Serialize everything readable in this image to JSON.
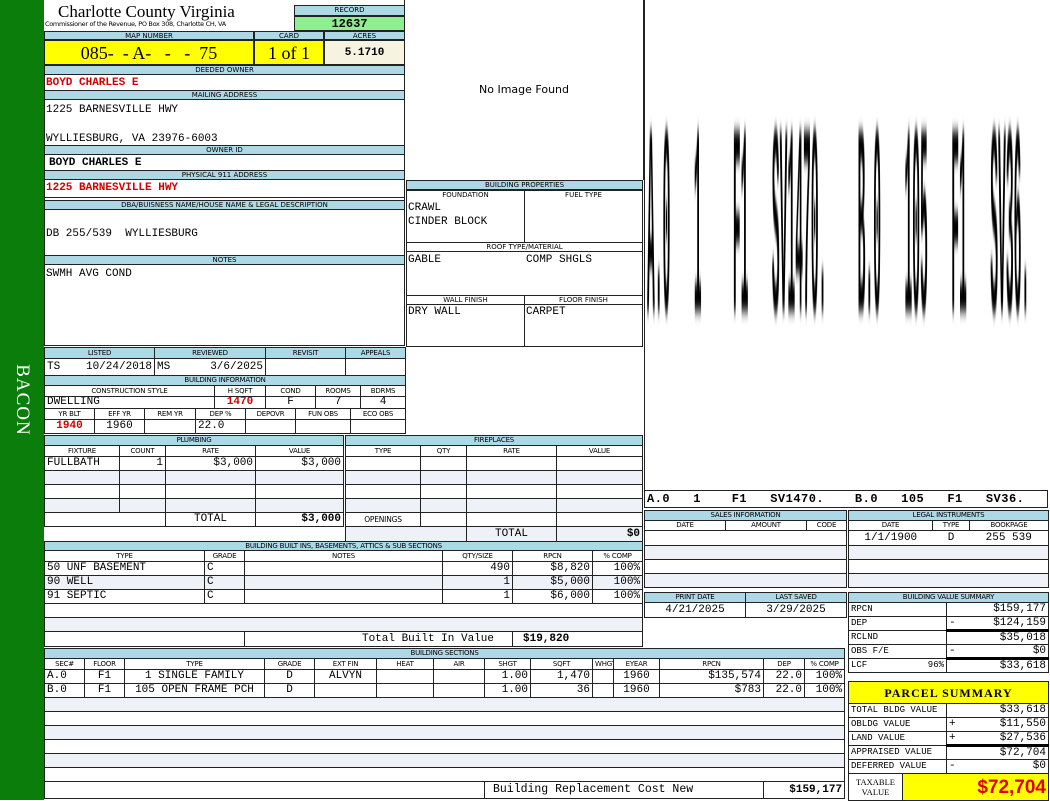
{
  "district": "BACON",
  "county": {
    "title": "Charlotte County Virginia",
    "subtitle": "Commissioner of the Revenue, PO Box 308, Charlotte CH, VA"
  },
  "record": {
    "label": "RECORD",
    "value": "12637"
  },
  "map": {
    "map_label": "MAP NUMBER",
    "map_value": "085-  - A-   -   -  75",
    "card_label": "CARD",
    "card_value": "1 of 1",
    "acres_label": "ACRES",
    "acres_value": "5.1710"
  },
  "owner": {
    "deeded_label": "DEEDED OWNER",
    "deeded_value": "BOYD CHARLES E",
    "mailing_label": "MAILING ADDRESS",
    "mailing_line1": "1225 BARNESVILLE HWY",
    "mailing_line2": "WYLLIESBURG, VA 23976-6003",
    "owner_id_label": "OWNER ID",
    "owner_id_value": "BOYD CHARLES E",
    "physical_label": "PHYSICAL 911 ADDRESS",
    "physical_value": "1225 BARNESVILLE HWY",
    "dba_label": "DBA/BUISNESS NAME/HOUSE NAME & LEGAL DESCRIPTION",
    "dba_value": "DB 255/539  WYLLIESBURG",
    "notes_label": "NOTES",
    "notes_value": "SWMH AVG COND"
  },
  "image": {
    "text": "No Image Found"
  },
  "props": {
    "title": "BUILDING PROPERTIES",
    "foundation_label": "FOUNDATION",
    "fuel_label": "FUEL TYPE",
    "foundation_1": "CRAWL",
    "foundation_2": "CINDER BLOCK",
    "roof_label": "ROOF TYPE/MATERIAL",
    "roof_type": "GABLE",
    "roof_material": "COMP SHGLS",
    "wall_label": "WALL FINISH",
    "floor_label": "FLOOR FINISH",
    "wall": "DRY WALL",
    "floor": "CARPET"
  },
  "sketch": {
    "label": "A.0   1    F1   SV1470.    B.0   105   F1   SV36."
  },
  "listed": {
    "listed_label": "LISTED",
    "reviewed_label": "REVIEWED",
    "revisit_label": "REVISIT",
    "appeals_label": "APPEALS",
    "listed_by": "TS",
    "listed_date": "10/24/2018",
    "reviewed_by": "MS",
    "reviewed_date": "3/6/2025"
  },
  "building_info": {
    "title": "BUILDING INFORMATION",
    "headers1": [
      "CONSTRUCTION STYLE",
      "H SQFT",
      "COND",
      "ROOMS",
      "BDRMS"
    ],
    "values1": [
      "DWELLING",
      "1470",
      "F",
      "7",
      "4"
    ],
    "headers2": [
      "YR BLT",
      "EFF YR",
      "REM YR",
      "DEP %",
      "DEPOVR",
      "FUN OBS",
      "ECO OBS"
    ],
    "values2": [
      "1940",
      "1960",
      "",
      "22.0",
      "",
      "",
      ""
    ]
  },
  "plumbing": {
    "title": "PLUMBING",
    "headers": [
      "FIXTURE",
      "COUNT",
      "RATE",
      "VALUE"
    ],
    "rows": [
      [
        "FULLBATH",
        "1",
        "$3,000",
        "$3,000"
      ]
    ],
    "total_label": "TOTAL",
    "total_value": "$3,000"
  },
  "fireplaces": {
    "title": "FIREPLACES",
    "headers": [
      "TYPE",
      "QTY",
      "RATE",
      "VALUE"
    ],
    "openings_label": "OPENINGS",
    "total_label": "TOTAL",
    "total_value": "$0"
  },
  "builtins": {
    "title": "BUILDING BUILT INS, BASEMENTS, ATTICS & SUB SECTIONS",
    "headers": [
      "TYPE",
      "GRADE",
      "NOTES",
      "QTY/SIZE",
      "RPCN",
      "% COMP"
    ],
    "rows": [
      [
        "50 UNF BASEMENT",
        "C",
        "",
        "490",
        "$8,820",
        "100%"
      ],
      [
        "90 WELL",
        "C",
        "",
        "1",
        "$5,000",
        "100%"
      ],
      [
        "91 SEPTIC",
        "C",
        "",
        "1",
        "$6,000",
        "100%"
      ]
    ],
    "total_label": "Total Built In Value",
    "total_value": "$19,820"
  },
  "sections": {
    "title": "BUILDING SECTIONS",
    "headers": [
      "SEC#",
      "FLOOR",
      "TYPE",
      "GRADE",
      "EXT FIN",
      "HEAT",
      "AIR",
      "SHGT",
      "SQFT",
      "WHGT",
      "EYEAR",
      "RPCN",
      "DEP",
      "% COMP"
    ],
    "rows": [
      [
        "A.0",
        "F1",
        "1 SINGLE FAMILY",
        "D",
        "ALVYN",
        "",
        "",
        "1.00",
        "1,470",
        "",
        "1960",
        "$135,574",
        "22.0",
        "100%"
      ],
      [
        "B.0",
        "F1",
        "105 OPEN FRAME PCH",
        "D",
        "",
        "",
        "",
        "1.00",
        "36",
        "",
        "1960",
        "$783",
        "22.0",
        "100%"
      ]
    ],
    "total_label": "Building Replacement Cost New",
    "total_value": "$159,177"
  },
  "sales": {
    "title": "SALES INFORMATION",
    "headers": [
      "DATE",
      "AMOUNT",
      "CODE"
    ]
  },
  "legal": {
    "title": "LEGAL INSTRUMENTS",
    "headers": [
      "DATE",
      "TYPE",
      "BOOKPAGE"
    ],
    "rows": [
      [
        "1/1/1900",
        "D",
        "255 539"
      ]
    ]
  },
  "dates": {
    "print_label": "PRINT DATE",
    "saved_label": "LAST SAVED",
    "print_date": "4/21/2025",
    "last_saved": "3/29/2025"
  },
  "value_summary": {
    "title": "BUILDING VALUE SUMMARY",
    "rows": [
      {
        "label": "RPCN",
        "pct": "",
        "sign": "",
        "value": "$159,177"
      },
      {
        "label": "DEP",
        "pct": "",
        "sign": "-",
        "value": "$124,159"
      },
      {
        "label": "RCLND",
        "pct": "",
        "sign": "",
        "value": "$35,018"
      },
      {
        "label": "OBS F/E",
        "pct": "",
        "sign": "-",
        "value": "$0"
      },
      {
        "label": "LCF",
        "pct": "96%",
        "sign": "",
        "value": "$33,618"
      }
    ]
  },
  "parcel": {
    "title": "PARCEL SUMMARY",
    "rows": [
      {
        "label": "TOTAL BLDG VALUE",
        "sign": "",
        "value": "$33,618"
      },
      {
        "label": "OBLDG VALUE",
        "sign": "+",
        "value": "$11,550"
      },
      {
        "label": "LAND VALUE",
        "sign": "+",
        "value": "$27,536"
      },
      {
        "label": "APPRAISED VALUE",
        "sign": "",
        "value": "$72,704"
      },
      {
        "label": "DEFERRED VALUE",
        "sign": "-",
        "value": "$0"
      }
    ],
    "taxable_label_1": "TAXABLE",
    "taxable_label_2": "VALUE",
    "taxable_value": "$72,704"
  },
  "colors": {
    "header": "#add8e6",
    "sidebar": "#0a7d0a",
    "highlight": "#ffff00",
    "record": "#90ee90",
    "red": "#d40000"
  }
}
